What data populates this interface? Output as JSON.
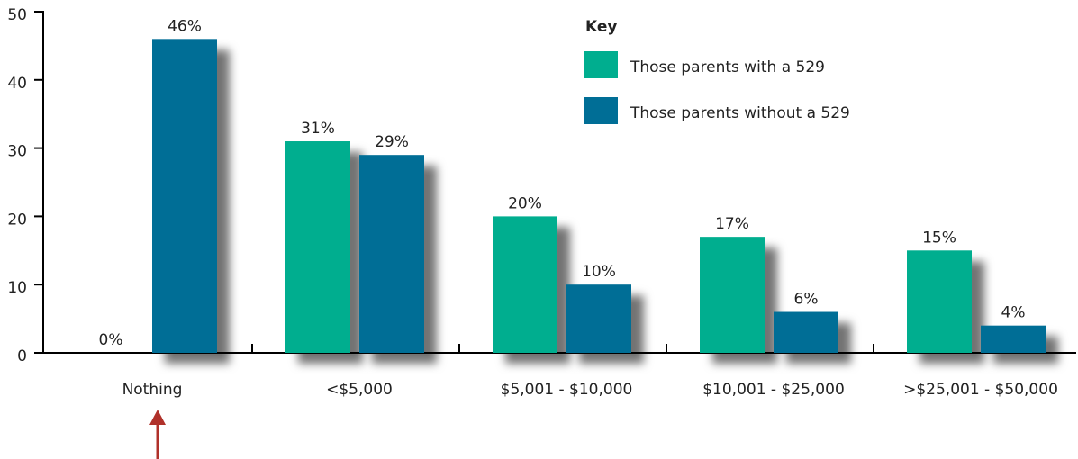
{
  "chart_data": {
    "type": "bar",
    "categories": [
      "Nothing",
      "<$5,000",
      "$5,001 - $10,000",
      "$10,001 - $25,000",
      ">$25,001 - $50,000"
    ],
    "series": [
      {
        "name": "Those parents with a 529",
        "color": "#00ae8f",
        "values": [
          0,
          31,
          20,
          17,
          15
        ],
        "value_labels": [
          "0%",
          "31%",
          "20%",
          "17%",
          "15%"
        ]
      },
      {
        "name": "Those parents without a 529",
        "color": "#006e96",
        "values": [
          46,
          29,
          10,
          6,
          4
        ],
        "value_labels": [
          "46%",
          "29%",
          "10%",
          "6%",
          "4%"
        ]
      }
    ],
    "ylim": [
      0,
      50
    ],
    "yticks": [
      0,
      10,
      20,
      30,
      40,
      50
    ],
    "legend_title": "Key",
    "legend_position": "upper-right"
  }
}
